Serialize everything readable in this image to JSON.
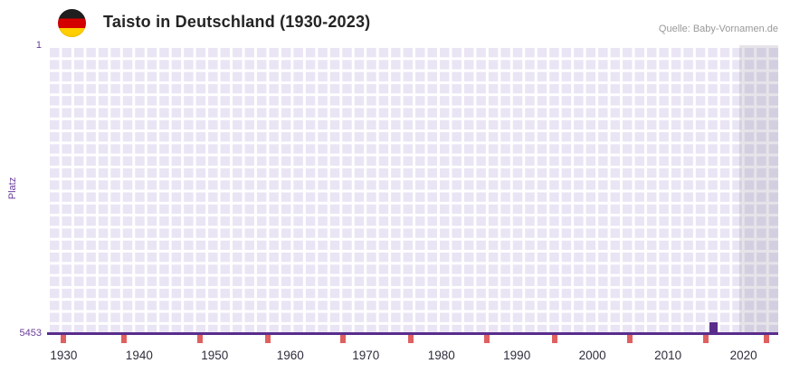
{
  "header": {
    "title": "Taisto in Deutschland (1930-2023)",
    "source": "Quelle: Baby-Vornamen.de"
  },
  "chart_data": {
    "type": "scatter",
    "title": "Taisto in Deutschland (1930-2023)",
    "xlabel": "",
    "ylabel": "Platz",
    "x_range": [
      1927.8,
      2024.6
    ],
    "x_ticks": [
      1930,
      1940,
      1950,
      1960,
      1970,
      1980,
      1990,
      2000,
      2010,
      2020
    ],
    "y_axis": {
      "top_label": "1",
      "bottom_label": "5453",
      "min": 1,
      "max": 5453,
      "inverted": true
    },
    "points": [
      {
        "year": 2016,
        "rank": 5453
      }
    ],
    "no_rank_marker_years": [
      1930,
      1938,
      1948,
      1957,
      1967,
      1976,
      1986,
      1995,
      2005,
      2015,
      2023
    ],
    "shaded_region": {
      "start_year": 2019.5,
      "end_year": 2024.6
    },
    "grid": true,
    "legend": false,
    "colors": {
      "plot_bg": "#e9e5f4",
      "grid": "#ffffff",
      "baseline": "#5a2d8c",
      "point": "#5a2d8c",
      "no_rank_marker": "#e06060",
      "shaded_region": "rgba(128,120,146,0.20)",
      "axis_label": "#6a3d9a",
      "x_tick_label": "#2e2e3e",
      "title": "#242424",
      "source": "#999999"
    }
  }
}
